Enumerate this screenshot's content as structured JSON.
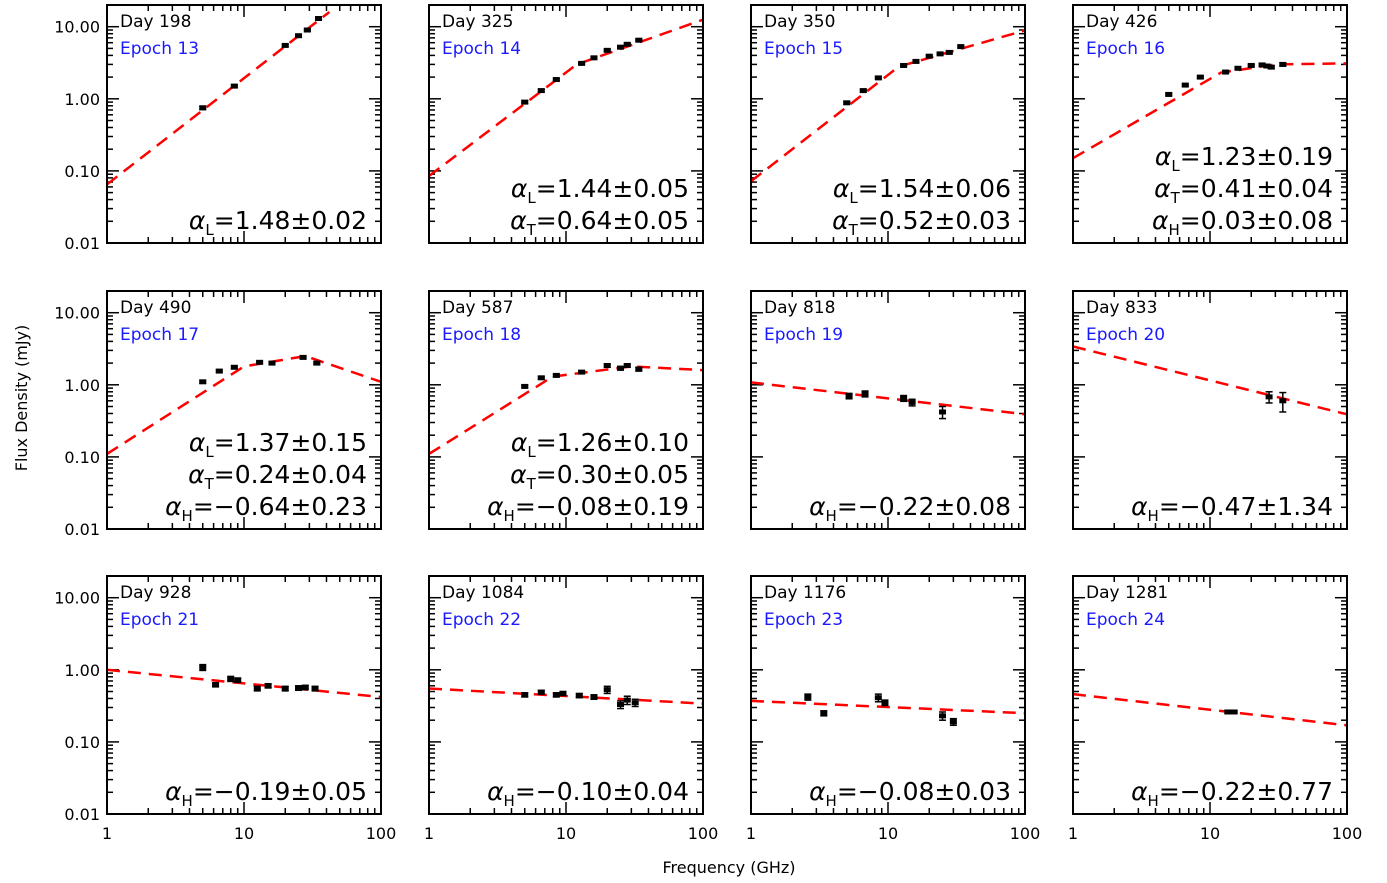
{
  "chart_data": {
    "type": "scatter",
    "layout": "grid 3x4",
    "xlabel": "Frequency (GHz)",
    "ylabel": "Flux Density (mJy)",
    "xscale": "log",
    "yscale": "log",
    "xlim": [
      1,
      100
    ],
    "ylim": [
      0.01,
      20
    ],
    "x_ticks": [
      "1",
      "10",
      "100"
    ],
    "y_ticks": [
      "0.01",
      "0.10",
      "1.00",
      "10.00"
    ],
    "colors": {
      "data": "#000000",
      "fit": "#ff0000",
      "epoch": "#1a1aff"
    },
    "panels": [
      {
        "day": "Day 198",
        "epoch": "Epoch 13",
        "alphas": [
          {
            "sym": "α",
            "sub": "L",
            "txt": "=1.48±0.02"
          }
        ],
        "points": [
          [
            5,
            0.75,
            0.04
          ],
          [
            8.5,
            1.5,
            0.06
          ],
          [
            20,
            5.5,
            0.2
          ],
          [
            25,
            7.5,
            0.3
          ],
          [
            29,
            9,
            0.3
          ],
          [
            35,
            13,
            0.4
          ]
        ],
        "fit": [
          [
            1,
            0.065
          ],
          [
            42,
            16
          ]
        ]
      },
      {
        "day": "Day 325",
        "epoch": "Epoch 14",
        "alphas": [
          {
            "sym": "α",
            "sub": "L",
            "txt": "=1.44±0.05"
          },
          {
            "sym": "α",
            "sub": "T",
            "txt": "=0.64±0.05"
          }
        ],
        "points": [
          [
            5,
            0.9,
            0.04
          ],
          [
            6.6,
            1.3,
            0.05
          ],
          [
            8.5,
            1.85,
            0.06
          ],
          [
            13,
            3.1,
            0.1
          ],
          [
            16,
            3.7,
            0.12
          ],
          [
            20,
            4.7,
            0.15
          ],
          [
            25,
            5.2,
            0.18
          ],
          [
            28,
            5.7,
            0.2
          ],
          [
            34,
            6.5,
            0.2
          ]
        ],
        "fit": [
          [
            1,
            0.085
          ],
          [
            12,
            3.0
          ],
          [
            100,
            12.5
          ]
        ]
      },
      {
        "day": "Day 350",
        "epoch": "Epoch 15",
        "alphas": [
          {
            "sym": "α",
            "sub": "L",
            "txt": "=1.54±0.06"
          },
          {
            "sym": "α",
            "sub": "T",
            "txt": "=0.52±0.03"
          }
        ],
        "points": [
          [
            5,
            0.88,
            0.04
          ],
          [
            6.6,
            1.3,
            0.05
          ],
          [
            8.5,
            1.95,
            0.07
          ],
          [
            13,
            2.9,
            0.1
          ],
          [
            16,
            3.3,
            0.1
          ],
          [
            20,
            3.9,
            0.12
          ],
          [
            24,
            4.2,
            0.14
          ],
          [
            28,
            4.4,
            0.15
          ],
          [
            34,
            5.3,
            0.18
          ]
        ],
        "fit": [
          [
            1,
            0.072
          ],
          [
            12,
            2.8
          ],
          [
            100,
            8.9
          ]
        ]
      },
      {
        "day": "Day 426",
        "epoch": "Epoch 16",
        "alphas": [
          {
            "sym": "α",
            "sub": "L",
            "txt": "=1.23±0.19"
          },
          {
            "sym": "α",
            "sub": "T",
            "txt": "=0.41±0.04"
          },
          {
            "sym": "α",
            "sub": "H",
            "txt": "=0.03±0.08"
          }
        ],
        "points": [
          [
            5,
            1.15,
            0.05
          ],
          [
            6.6,
            1.55,
            0.06
          ],
          [
            8.5,
            2.0,
            0.07
          ],
          [
            13,
            2.35,
            0.08
          ],
          [
            16,
            2.65,
            0.09
          ],
          [
            20,
            2.9,
            0.1
          ],
          [
            24,
            2.95,
            0.12
          ],
          [
            26,
            2.85,
            0.12
          ],
          [
            28,
            2.75,
            0.12
          ],
          [
            34,
            3.0,
            0.15
          ]
        ],
        "fit": [
          [
            1,
            0.15
          ],
          [
            12,
            2.3
          ],
          [
            30,
            3.0
          ],
          [
            100,
            3.1
          ]
        ]
      },
      {
        "day": "Day 490",
        "epoch": "Epoch 17",
        "alphas": [
          {
            "sym": "α",
            "sub": "L",
            "txt": "=1.37±0.15"
          },
          {
            "sym": "α",
            "sub": "T",
            "txt": "=0.24±0.04"
          },
          {
            "sym": "α",
            "sub": "H",
            "txt": "=−0.64±0.23"
          }
        ],
        "points": [
          [
            5,
            1.1,
            0.05
          ],
          [
            6.6,
            1.55,
            0.06
          ],
          [
            8.5,
            1.75,
            0.07
          ],
          [
            13,
            2.05,
            0.08
          ],
          [
            16,
            2.0,
            0.08
          ],
          [
            27,
            2.4,
            0.1
          ],
          [
            34,
            2.0,
            0.08
          ]
        ],
        "fit": [
          [
            1,
            0.11
          ],
          [
            10,
            1.8
          ],
          [
            28,
            2.5
          ],
          [
            100,
            1.1
          ]
        ]
      },
      {
        "day": "Day 587",
        "epoch": "Epoch 18",
        "alphas": [
          {
            "sym": "α",
            "sub": "L",
            "txt": "=1.26±0.10"
          },
          {
            "sym": "α",
            "sub": "T",
            "txt": "=0.30±0.05"
          },
          {
            "sym": "α",
            "sub": "H",
            "txt": "=−0.08±0.19"
          }
        ],
        "points": [
          [
            5,
            0.95,
            0.04
          ],
          [
            6.6,
            1.25,
            0.05
          ],
          [
            8.5,
            1.35,
            0.05
          ],
          [
            13,
            1.5,
            0.06
          ],
          [
            20,
            1.85,
            0.1
          ],
          [
            25,
            1.7,
            0.1
          ],
          [
            28,
            1.85,
            0.1
          ],
          [
            34,
            1.65,
            0.1
          ]
        ],
        "fit": [
          [
            1,
            0.11
          ],
          [
            8,
            1.3
          ],
          [
            30,
            1.8
          ],
          [
            100,
            1.6
          ]
        ]
      },
      {
        "day": "Day 818",
        "epoch": "Epoch 19",
        "alphas": [
          {
            "sym": "α",
            "sub": "H",
            "txt": "=−0.22±0.08"
          }
        ],
        "points": [
          [
            5.2,
            0.7,
            0.06
          ],
          [
            6.8,
            0.75,
            0.07
          ],
          [
            13,
            0.65,
            0.06
          ],
          [
            15,
            0.57,
            0.06
          ],
          [
            25,
            0.42,
            0.08
          ]
        ],
        "fit": [
          [
            1,
            1.08
          ],
          [
            100,
            0.39
          ]
        ]
      },
      {
        "day": "Day 833",
        "epoch": "Epoch 20",
        "alphas": [
          {
            "sym": "α",
            "sub": "H",
            "txt": "=−0.47±1.34"
          }
        ],
        "points": [
          [
            27,
            0.68,
            0.12
          ],
          [
            34,
            0.6,
            0.18
          ]
        ],
        "fit": [
          [
            1,
            3.4
          ],
          [
            100,
            0.39
          ]
        ]
      },
      {
        "day": "Day 928",
        "epoch": "Epoch 21",
        "alphas": [
          {
            "sym": "α",
            "sub": "H",
            "txt": "=−0.19±0.05"
          }
        ],
        "points": [
          [
            5,
            1.08,
            0.1
          ],
          [
            6.2,
            0.62,
            0.04
          ],
          [
            8,
            0.75,
            0.06
          ],
          [
            9,
            0.72,
            0.05
          ],
          [
            12.5,
            0.55,
            0.04
          ],
          [
            15,
            0.6,
            0.04
          ],
          [
            20,
            0.55,
            0.04
          ],
          [
            25,
            0.56,
            0.04
          ],
          [
            28,
            0.57,
            0.04
          ],
          [
            33,
            0.55,
            0.04
          ]
        ],
        "fit": [
          [
            1,
            1.0
          ],
          [
            100,
            0.42
          ]
        ]
      },
      {
        "day": "Day 1084",
        "epoch": "Epoch 22",
        "alphas": [
          {
            "sym": "α",
            "sub": "H",
            "txt": "=−0.10±0.04"
          }
        ],
        "points": [
          [
            5,
            0.45,
            0.03
          ],
          [
            6.6,
            0.49,
            0.03
          ],
          [
            8.5,
            0.45,
            0.03
          ],
          [
            9.5,
            0.47,
            0.03
          ],
          [
            12.5,
            0.44,
            0.03
          ],
          [
            16,
            0.42,
            0.03
          ],
          [
            20,
            0.53,
            0.06
          ],
          [
            25,
            0.33,
            0.04
          ],
          [
            28,
            0.38,
            0.05
          ],
          [
            32,
            0.35,
            0.04
          ]
        ],
        "fit": [
          [
            1,
            0.55
          ],
          [
            100,
            0.34
          ]
        ]
      },
      {
        "day": "Day 1176",
        "epoch": "Epoch 23",
        "alphas": [
          {
            "sym": "α",
            "sub": "H",
            "txt": "=−0.08±0.03"
          }
        ],
        "points": [
          [
            2.6,
            0.42,
            0.04
          ],
          [
            3.4,
            0.25,
            0.02
          ],
          [
            8.5,
            0.41,
            0.05
          ],
          [
            9.5,
            0.35,
            0.03
          ],
          [
            25,
            0.23,
            0.03
          ],
          [
            30,
            0.19,
            0.02
          ]
        ],
        "fit": [
          [
            1,
            0.37
          ],
          [
            100,
            0.25
          ]
        ]
      },
      {
        "day": "Day 1281",
        "epoch": "Epoch 24",
        "alphas": [
          {
            "sym": "α",
            "sub": "H",
            "txt": "=−0.22±0.77"
          }
        ],
        "points": [
          [
            13.5,
            0.26,
            0.01
          ],
          [
            15,
            0.26,
            0.01
          ]
        ],
        "fit": [
          [
            1,
            0.46
          ],
          [
            100,
            0.17
          ]
        ]
      }
    ]
  }
}
